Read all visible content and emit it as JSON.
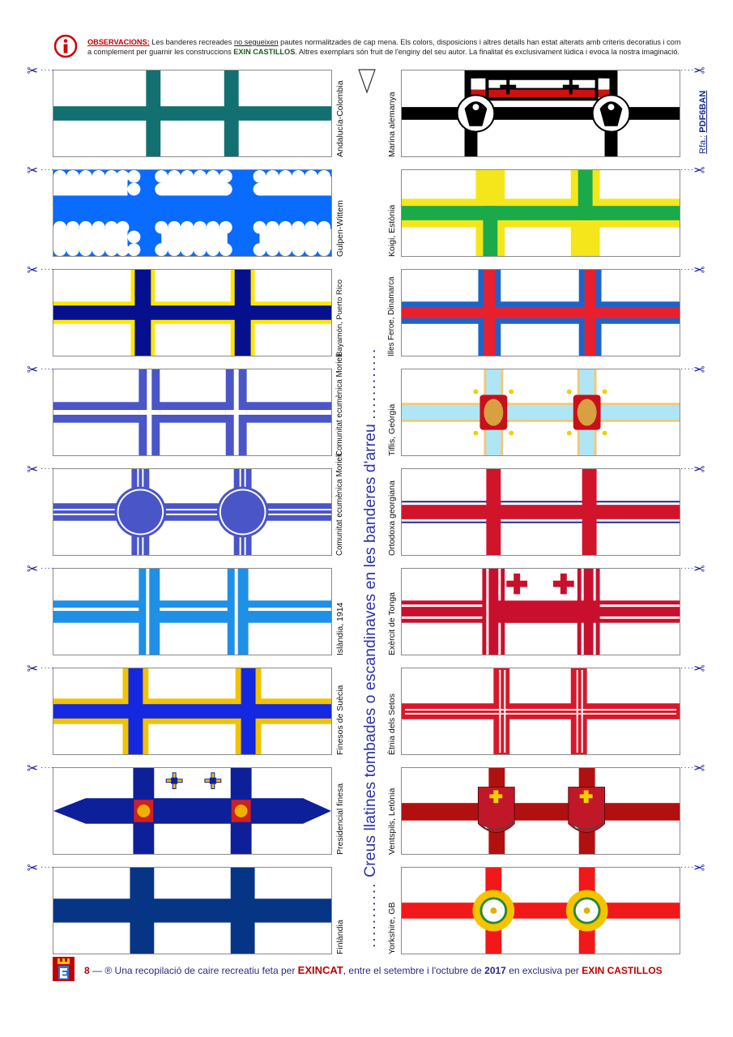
{
  "notes": {
    "label": "OBSERVACIONS:",
    "text_1": " Les banderes recreades ",
    "underlined": "no segueixen",
    "text_2": " pautes normalitzades de cap mena. Els colors, disposicions i altres detalls han estat alterats amb criteris decoratius i com a complement per guarnir les construccions ",
    "brand": "EXIN CASTILLOS",
    "text_3": ". Altres exemplars són fruit de l'enginy del seu autor. La finalitat és exclusivament lúdica i evoca la nostra imaginació."
  },
  "side_title": "Creus llatines tombades o escandinaves en les banderes d'arreu",
  "reference": {
    "prefix": "Rfa.:",
    "code": "PDF6BAN"
  },
  "flags_left": [
    {
      "label": "Andalucía-Colombia"
    },
    {
      "label": "Gulpen-Wittem"
    },
    {
      "label": "Bayamón, Puerto Rico"
    },
    {
      "label": "Comunitat ecumènica Morieli"
    },
    {
      "label": "Comunitat ecumènica Morieli"
    },
    {
      "label": "Islàndia, 1914"
    },
    {
      "label": "Finesos de Suècia"
    },
    {
      "label": "Presidencial finesa"
    },
    {
      "label": "Finlàndia"
    }
  ],
  "flags_right": [
    {
      "label": "Marina alemanya"
    },
    {
      "label": "Koigi, Estònia"
    },
    {
      "label": "Illes Feroe, Dinamarca"
    },
    {
      "label": "Tiflis, Geòrgia"
    },
    {
      "label": "Ortodoxa georgiana"
    },
    {
      "label": "Exèrcit de Tonga"
    },
    {
      "label": "Ètnia dels Setos"
    },
    {
      "label": "Ventspils, Letònia"
    },
    {
      "label": "Yorkshire, GB"
    }
  ],
  "footer": {
    "page": "8",
    "dash": " — ® Una recopilació de caire recreatiu feta per ",
    "author": "EXINCAT",
    "mid": ", entre el setembre i l'octubre de ",
    "year": "2017",
    "mid2": " en exclusiva per ",
    "brand": "EXIN CASTILLOS"
  },
  "colors": {
    "accent": "#2c33a6",
    "brand_red": "#c00000"
  },
  "icons": {
    "info": "info-circle-icon",
    "scissors": "scissors-icon",
    "logo": "exin-castillos-logo"
  }
}
